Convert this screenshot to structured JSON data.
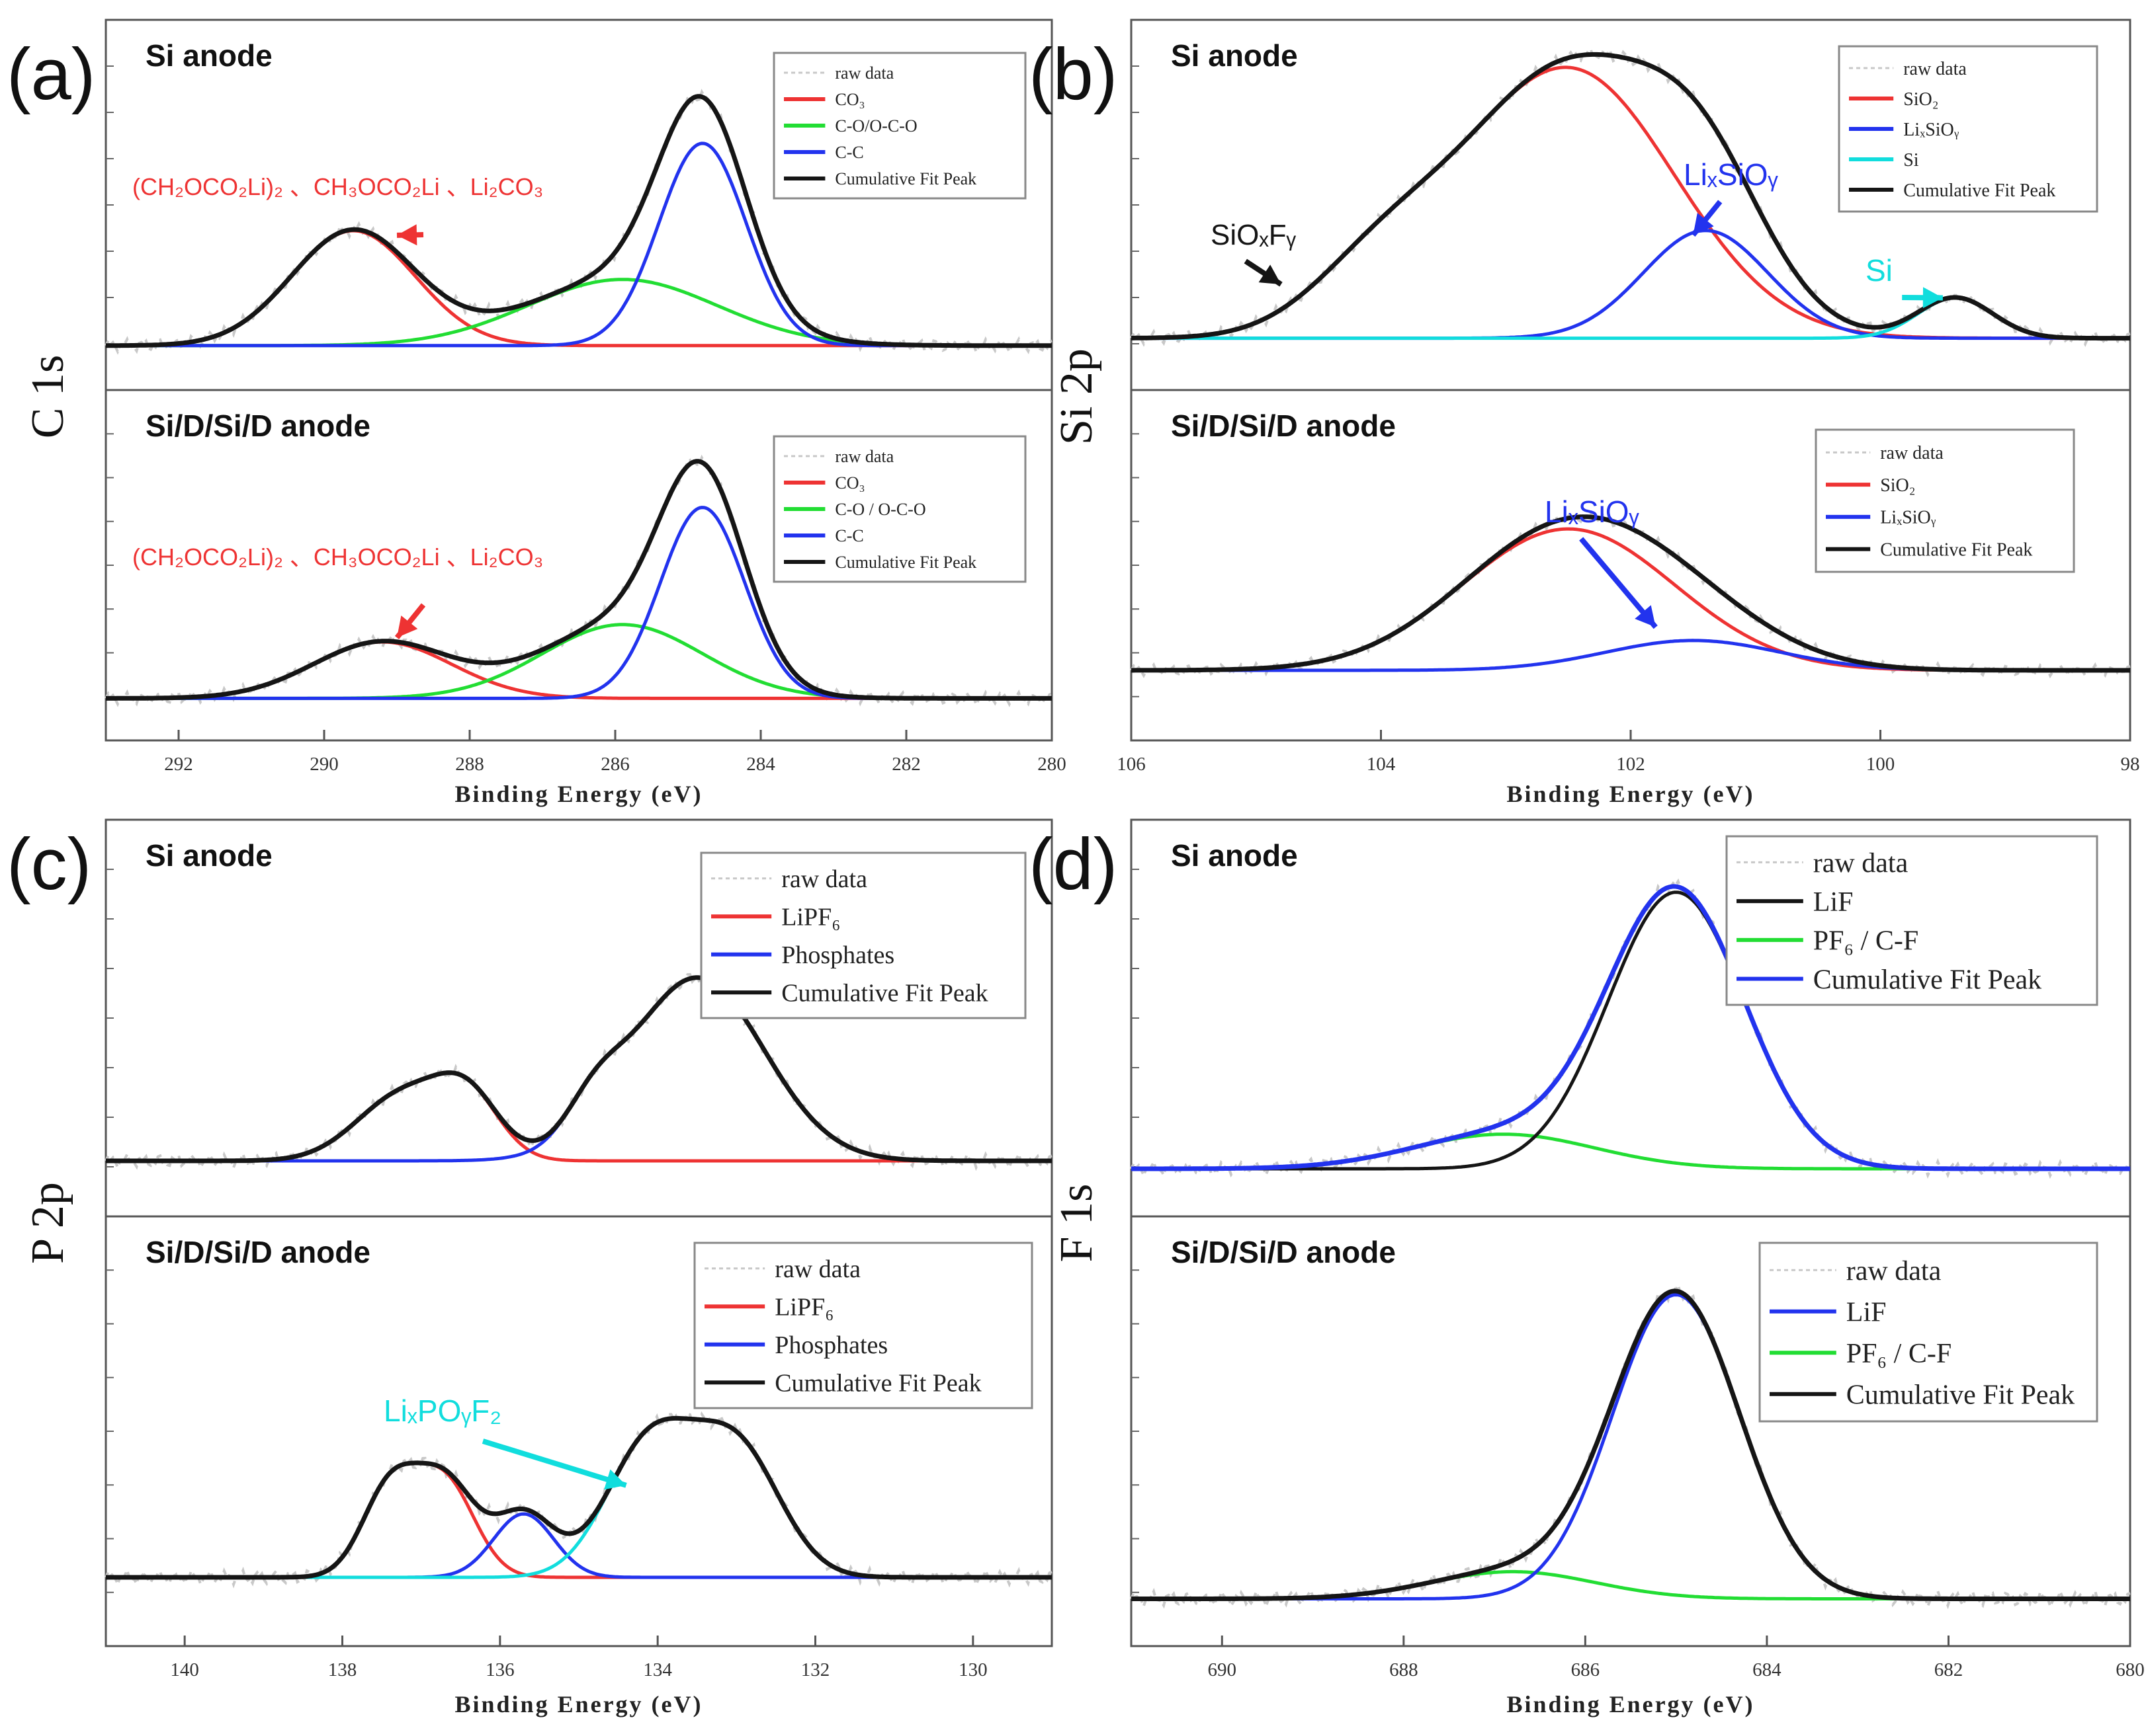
{
  "colors": {
    "raw": "#c8c8c8",
    "red": "#ee3333",
    "green": "#22dd33",
    "blue": "#2233ee",
    "black": "#151515",
    "cyan": "#11dddd"
  },
  "chart_data": [
    {
      "id": "a",
      "panel_label": "(a)",
      "type": "line",
      "ylabel": "C 1s",
      "xlabel": "Binding Energy (eV)",
      "xlim": [
        293,
        280
      ],
      "xticks": [
        "292",
        "290",
        "288",
        "286",
        "284",
        "282",
        "280"
      ],
      "xtick_values": [
        292,
        290,
        288,
        286,
        284,
        282,
        280
      ],
      "subplots": [
        {
          "title": "Si anode",
          "ylim": [
            0,
            3.4
          ],
          "legend": [
            {
              "label": "raw data",
              "color": "raw",
              "dashed": true
            },
            {
              "label": "CO₃",
              "color": "red"
            },
            {
              "label": "C-O/O-C-O",
              "color": "green"
            },
            {
              "label": "C-C",
              "color": "blue"
            },
            {
              "label": "Cumulative Fit Peak",
              "color": "black"
            }
          ],
          "annotations": [
            {
              "text": "(CH₂OCO₂Li)₂ 、CH₃OCO₂Li 、Li₂CO₃",
              "color": "red",
              "arrow_to": [
                289,
                1.2
              ]
            }
          ],
          "series": [
            {
              "name": "CO₃",
              "color": "red",
              "peaks": [
                [
                  289.6,
                  1.25,
                  0.85
                ]
              ]
            },
            {
              "name": "C-O/O-C-O",
              "color": "green",
              "peaks": [
                [
                  285.9,
                  0.72,
                  1.3
                ]
              ]
            },
            {
              "name": "C-C",
              "color": "blue",
              "peaks": [
                [
                  284.8,
                  2.2,
                  0.6
                ]
              ]
            },
            {
              "name": "Cumulative Fit Peak",
              "color": "black",
              "cumulative": true,
              "peaks": [
                [
                  289.6,
                  1.25,
                  0.85
                ],
                [
                  285.9,
                  0.72,
                  1.3
                ],
                [
                  284.8,
                  2.2,
                  0.6
                ]
              ]
            }
          ]
        },
        {
          "title": "Si/D/Si/D anode",
          "ylim": [
            0,
            3.4
          ],
          "legend": [
            {
              "label": "raw data",
              "color": "raw",
              "dashed": true
            },
            {
              "label": "CO₃",
              "color": "red"
            },
            {
              "label": "C-O / O-C-O",
              "color": "green"
            },
            {
              "label": "C-C",
              "color": "blue"
            },
            {
              "label": "Cumulative Fit Peak",
              "color": "black"
            }
          ],
          "annotations": [
            {
              "text": "(CH₂OCO₂Li)₂ 、CH₃OCO₂Li 、Li₂CO₃",
              "color": "red",
              "arrow_to": [
                289,
                0.7
              ]
            }
          ],
          "series": [
            {
              "name": "CO₃",
              "color": "red",
              "peaks": [
                [
                  289.2,
                  0.65,
                  0.95
                ]
              ]
            },
            {
              "name": "C-O / O-C-O",
              "color": "green",
              "peaks": [
                [
                  285.9,
                  0.85,
                  1.1
                ]
              ]
            },
            {
              "name": "C-C",
              "color": "blue",
              "peaks": [
                [
                  284.8,
                  2.2,
                  0.58
                ]
              ]
            },
            {
              "name": "Cumulative Fit Peak",
              "color": "black",
              "cumulative": true,
              "peaks": [
                [
                  289.2,
                  0.65,
                  0.95
                ],
                [
                  285.9,
                  0.85,
                  1.1
                ],
                [
                  284.8,
                  2.2,
                  0.58
                ]
              ]
            }
          ]
        }
      ]
    },
    {
      "id": "b",
      "panel_label": "(b)",
      "type": "line",
      "ylabel": "Si 2p",
      "xlabel": "Binding Energy (eV)",
      "xlim": [
        106,
        98
      ],
      "xticks": [
        "106",
        "104",
        "102",
        "100",
        "98"
      ],
      "xtick_values": [
        106,
        104,
        102,
        100,
        98
      ],
      "subplots": [
        {
          "title": "Si anode",
          "ylim": [
            0,
            3.4
          ],
          "legend": [
            {
              "label": "raw data",
              "color": "raw",
              "dashed": true
            },
            {
              "label": "SiO₂",
              "color": "red"
            },
            {
              "label": "LiₓSiOᵧ",
              "color": "blue"
            },
            {
              "label": "Si",
              "color": "cyan"
            },
            {
              "label": "Cumulative Fit Peak",
              "color": "black"
            }
          ],
          "annotations": [
            {
              "text": "SiOₓFᵧ",
              "color": "black",
              "arrow_to": [
                104.8,
                0.6
              ]
            },
            {
              "text": "LiₓSiOᵧ",
              "color": "blue",
              "arrow_to": [
                101.5,
                1.15
              ]
            },
            {
              "text": "Si",
              "color": "cyan",
              "arrow_to": [
                99.5,
                0.45
              ]
            }
          ],
          "series": [
            {
              "name": "SiO₂",
              "color": "red",
              "peaks": [
                [
                  102.5,
                  3.0,
                  0.85
                ],
                [
                  104.0,
                  0.7,
                  0.55
                ]
              ]
            },
            {
              "name": "LiₓSiOᵧ",
              "color": "blue",
              "peaks": [
                [
                  101.4,
                  1.2,
                  0.5
                ]
              ]
            },
            {
              "name": "Si",
              "color": "cyan",
              "peaks": [
                [
                  99.4,
                  0.45,
                  0.3
                ]
              ]
            },
            {
              "name": "Cumulative Fit Peak",
              "color": "black",
              "cumulative": true,
              "peaks": [
                [
                  102.5,
                  3.0,
                  0.85
                ],
                [
                  104.0,
                  0.7,
                  0.55
                ],
                [
                  101.4,
                  1.2,
                  0.5
                ],
                [
                  99.4,
                  0.45,
                  0.3
                ]
              ]
            }
          ]
        },
        {
          "title": "Si/D/Si/D anode",
          "ylim": [
            0,
            3.4
          ],
          "legend": [
            {
              "label": "raw data",
              "color": "raw",
              "dashed": true
            },
            {
              "label": "SiO₂",
              "color": "red"
            },
            {
              "label": "LiₓSiOᵧ",
              "color": "blue"
            },
            {
              "label": "Cumulative Fit Peak",
              "color": "black"
            }
          ],
          "annotations": [
            {
              "text": "LiₓSiOᵧ",
              "color": "blue",
              "arrow_to": [
                101.8,
                0.55
              ]
            }
          ],
          "series": [
            {
              "name": "SiO₂",
              "color": "red",
              "peaks": [
                [
                  102.5,
                  1.8,
                  0.85
                ]
              ]
            },
            {
              "name": "LiₓSiOᵧ",
              "color": "blue",
              "peaks": [
                [
                  101.5,
                  0.38,
                  0.7
                ]
              ]
            },
            {
              "name": "Cumulative Fit Peak",
              "color": "black",
              "cumulative": true,
              "peaks": [
                [
                  102.5,
                  1.8,
                  0.85
                ],
                [
                  101.5,
                  0.38,
                  0.7
                ]
              ]
            }
          ]
        }
      ]
    },
    {
      "id": "c",
      "panel_label": "(c)",
      "type": "line",
      "ylabel": "P 2p",
      "xlabel": "Binding Energy (eV)",
      "xlim": [
        141,
        129
      ],
      "xticks": [
        "140",
        "138",
        "136",
        "134",
        "132",
        "130"
      ],
      "xtick_values": [
        140,
        138,
        136,
        134,
        132,
        130
      ],
      "subplots": [
        {
          "title": "Si anode",
          "ylim": [
            0,
            3.4
          ],
          "legend": [
            {
              "label": "raw data",
              "color": "raw",
              "dashed": true
            },
            {
              "label": "LiPF₆",
              "color": "red"
            },
            {
              "label": "Phosphates",
              "color": "blue"
            },
            {
              "label": "Cumulative Fit Peak",
              "color": "black"
            }
          ],
          "annotations": [],
          "series": [
            {
              "name": "LiPF₆",
              "color": "red",
              "peaks": [
                [
                  137.2,
                  0.7,
                  0.6
                ],
                [
                  136.4,
                  0.55,
                  0.4
                ]
              ]
            },
            {
              "name": "Phosphates",
              "color": "blue",
              "peaks": [
                [
                  134.8,
                  0.35,
                  0.35
                ],
                [
                  133.5,
                  1.9,
                  0.85
                ]
              ]
            },
            {
              "name": "Cumulative Fit Peak",
              "color": "black",
              "cumulative": true,
              "peaks": [
                [
                  137.2,
                  0.7,
                  0.6
                ],
                [
                  136.4,
                  0.55,
                  0.4
                ],
                [
                  134.8,
                  0.35,
                  0.35
                ],
                [
                  133.5,
                  1.9,
                  0.85
                ]
              ]
            }
          ]
        },
        {
          "title": "Si/D/Si/D anode",
          "ylim": [
            0,
            3.4
          ],
          "legend": [
            {
              "label": "raw data",
              "color": "raw",
              "dashed": true
            },
            {
              "label": "LiPF₆",
              "color": "red"
            },
            {
              "label": "Phosphates",
              "color": "blue"
            },
            {
              "label": "Cumulative Fit Peak",
              "color": "black"
            }
          ],
          "annotations": [
            {
              "text": "LiₓPOᵧF₂",
              "color": "cyan",
              "arrow_to": [
                134.4,
                0.9
              ]
            }
          ],
          "series": [
            {
              "name": "LiPF₆",
              "color": "red",
              "peaks": [
                [
                  137.4,
                  0.85,
                  0.35
                ],
                [
                  136.7,
                  0.92,
                  0.38
                ]
              ]
            },
            {
              "name": "Phosphates",
              "color": "blue",
              "peaks": [
                [
                  135.7,
                  0.62,
                  0.38
                ]
              ]
            },
            {
              "name": "LiₓPOᵧF₂",
              "color": "cyan",
              "peaks": [
                [
                  134.1,
                  1.3,
                  0.55
                ],
                [
                  133.0,
                  1.25,
                  0.55
                ]
              ]
            },
            {
              "name": "Cumulative Fit Peak",
              "color": "black",
              "cumulative": true,
              "peaks": [
                [
                  137.4,
                  0.85,
                  0.35
                ],
                [
                  136.7,
                  0.92,
                  0.38
                ],
                [
                  135.7,
                  0.62,
                  0.38
                ],
                [
                  134.1,
                  1.3,
                  0.55
                ],
                [
                  133.0,
                  1.25,
                  0.55
                ]
              ]
            }
          ]
        }
      ]
    },
    {
      "id": "d",
      "panel_label": "(d)",
      "type": "line",
      "ylabel": "F 1s",
      "xlabel": "Binding Energy (eV)",
      "xlim": [
        691,
        680
      ],
      "xticks": [
        "690",
        "688",
        "686",
        "684",
        "682",
        "680"
      ],
      "xtick_values": [
        690,
        688,
        686,
        684,
        682,
        680
      ],
      "subplots": [
        {
          "title": "Si anode",
          "ylim": [
            0,
            3.4
          ],
          "legend": [
            {
              "label": "raw data",
              "color": "raw",
              "dashed": true
            },
            {
              "label": "LiF",
              "color": "black"
            },
            {
              "label": "PF₆ / C-F",
              "color": "green"
            },
            {
              "label": "Cumulative Fit Peak",
              "color": "blue"
            }
          ],
          "annotations": [],
          "series": [
            {
              "name": "PF₆ / C-F",
              "color": "green",
              "peaks": [
                [
                  686.9,
                  0.35,
                  1.0
                ]
              ]
            },
            {
              "name": "LiF",
              "color": "black",
              "peaks": [
                [
                  685.0,
                  2.8,
                  0.75
                ]
              ]
            },
            {
              "name": "Cumulative Fit Peak",
              "color": "blue",
              "cumulative": true,
              "peaks": [
                [
                  686.9,
                  0.35,
                  1.0
                ],
                [
                  685.0,
                  2.8,
                  0.75
                ]
              ]
            }
          ]
        },
        {
          "title": "Si/D/Si/D anode",
          "ylim": [
            0,
            3.4
          ],
          "legend": [
            {
              "label": "raw data",
              "color": "raw",
              "dashed": true
            },
            {
              "label": "LiF",
              "color": "blue"
            },
            {
              "label": "PF₆ / C-F",
              "color": "green"
            },
            {
              "label": "Cumulative Fit Peak",
              "color": "black"
            }
          ],
          "annotations": [],
          "series": [
            {
              "name": "PF₆ / C-F",
              "color": "green",
              "peaks": [
                [
                  686.8,
                  0.25,
                  0.9
                ]
              ]
            },
            {
              "name": "LiF",
              "color": "blue",
              "peaks": [
                [
                  685.0,
                  2.8,
                  0.7
                ]
              ]
            },
            {
              "name": "Cumulative Fit Peak",
              "color": "black",
              "cumulative": true,
              "peaks": [
                [
                  686.8,
                  0.25,
                  0.9
                ],
                [
                  685.0,
                  2.8,
                  0.7
                ]
              ]
            }
          ]
        }
      ]
    }
  ]
}
